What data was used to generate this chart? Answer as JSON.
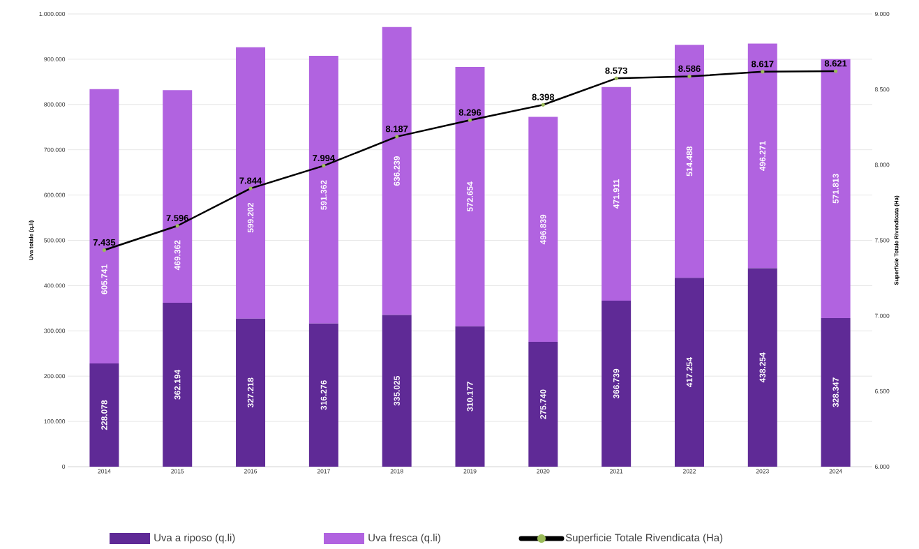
{
  "chart_data": {
    "type": "bar",
    "stacked": true,
    "ylabel": "Uva totale (q.li)",
    "y2label": "Superficie Totale Rivendicata (Ha)",
    "categories": [
      "2014",
      "2015",
      "2016",
      "2017",
      "2018",
      "2019",
      "2020",
      "2021",
      "2022",
      "2023",
      "2024"
    ],
    "series": [
      {
        "name": "Uva a riposo (q.li)",
        "color": "#5f2a96",
        "values": [
          228078,
          362194,
          327218,
          316276,
          335025,
          310177,
          275740,
          366739,
          417254,
          438254,
          328347
        ],
        "value_labels": [
          "228.078",
          "362.194",
          "327.218",
          "316.276",
          "335.025",
          "310.177",
          "275.740",
          "366.739",
          "417.254",
          "438.254",
          "328.347"
        ]
      },
      {
        "name": "Uva fresca (q.li)",
        "color": "#b163e0",
        "values": [
          605741,
          469362,
          599202,
          591362,
          636239,
          572654,
          496839,
          471911,
          514488,
          496271,
          571813
        ],
        "value_labels": [
          "605.741",
          "469.362",
          "599.202",
          "591.362",
          "636.239",
          "572.654",
          "496.839",
          "471.911",
          "514.488",
          "496.271",
          "571.813"
        ]
      },
      {
        "name": "Superficie Totale Rivendicata (Ha)",
        "type": "line",
        "axis": "y2",
        "color": "#000000",
        "marker": "circle",
        "values": [
          7435,
          7596,
          7844,
          7994,
          8187,
          8296,
          8398,
          8573,
          8586,
          8617,
          8621
        ],
        "value_labels": [
          "7.435",
          "7.596",
          "7.844",
          "7.994",
          "8.187",
          "8.296",
          "8.398",
          "8.573",
          "8.586",
          "8.617",
          "8.621"
        ]
      }
    ],
    "ylim": [
      0,
      1000000
    ],
    "yticks": [
      {
        "value": 0,
        "label": "0"
      },
      {
        "value": 100000,
        "label": "100.000"
      },
      {
        "value": 200000,
        "label": "200.000"
      },
      {
        "value": 300000,
        "label": "300.000"
      },
      {
        "value": 400000,
        "label": "400.000"
      },
      {
        "value": 500000,
        "label": "500.000"
      },
      {
        "value": 600000,
        "label": "600.000"
      },
      {
        "value": 700000,
        "label": "700.000"
      },
      {
        "value": 800000,
        "label": "800.000"
      },
      {
        "value": 900000,
        "label": "900.000"
      },
      {
        "value": 1000000,
        "label": "1.000.000"
      }
    ],
    "y2lim": [
      6000,
      9000
    ],
    "y2ticks": [
      {
        "value": 6000,
        "label": "6.000"
      },
      {
        "value": 6500,
        "label": "6.500"
      },
      {
        "value": 7000,
        "label": "7.000"
      },
      {
        "value": 7500,
        "label": "7.500"
      },
      {
        "value": 8000,
        "label": "8.000"
      },
      {
        "value": 8500,
        "label": "8.500"
      },
      {
        "value": 9000,
        "label": "9.000"
      }
    ],
    "grid": "y",
    "legend": "bottom"
  }
}
